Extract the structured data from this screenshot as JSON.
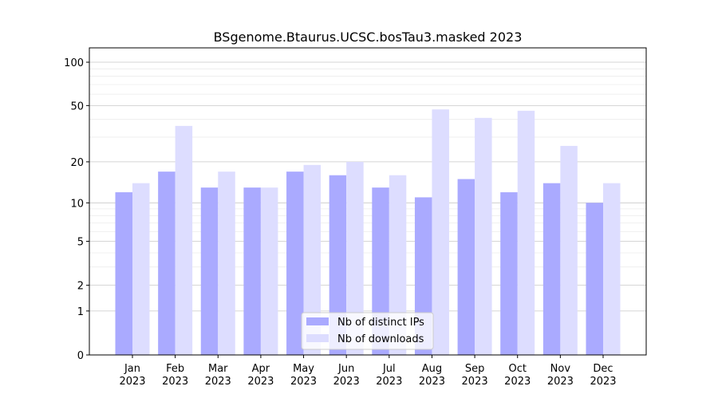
{
  "chart_data": {
    "type": "bar",
    "title": "BSgenome.Btaurus.UCSC.bosTau3.masked 2023",
    "xlabel": "",
    "ylabel": "",
    "yscale": "log(1+y)",
    "ylim": [
      0,
      120
    ],
    "yticks": [
      0,
      1,
      2,
      5,
      10,
      20,
      50,
      100
    ],
    "grid": true,
    "legend_position": "bottom-center",
    "categories": [
      "Jan\n2023",
      "Feb\n2023",
      "Mar\n2023",
      "Apr\n2023",
      "May\n2023",
      "Jun\n2023",
      "Jul\n2023",
      "Aug\n2023",
      "Sep\n2023",
      "Oct\n2023",
      "Nov\n2023",
      "Dec\n2023"
    ],
    "series": [
      {
        "name": "Nb of distinct IPs",
        "color": "#aaaaff",
        "values": [
          12,
          17,
          13,
          13,
          17,
          16,
          13,
          11,
          15,
          12,
          14,
          10
        ]
      },
      {
        "name": "Nb of downloads",
        "color": "#ddddff",
        "values": [
          14,
          36,
          17,
          13,
          19,
          20,
          16,
          47,
          41,
          46,
          26,
          14
        ]
      }
    ]
  }
}
